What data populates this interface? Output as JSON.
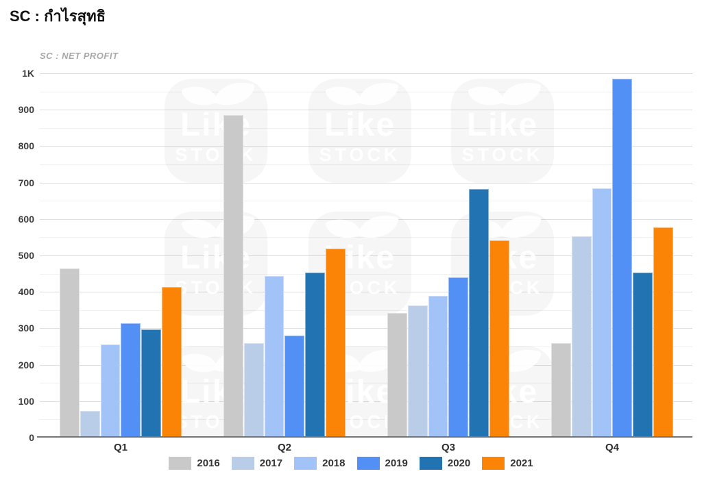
{
  "page": {
    "title": "SC : กำไรสุทธิ"
  },
  "watermark": {
    "line1": "Like",
    "line2": "STOCK"
  },
  "chart_data": {
    "type": "bar",
    "title": "SC : NET PROFIT",
    "categories": [
      "Q1",
      "Q2",
      "Q3",
      "Q4"
    ],
    "series": [
      {
        "name": "2016",
        "color": "#c9c9c9",
        "values": [
          465,
          885,
          342,
          260
        ]
      },
      {
        "name": "2017",
        "color": "#b9cde8",
        "values": [
          73,
          259,
          362,
          552
        ]
      },
      {
        "name": "2018",
        "color": "#a2c3f8",
        "values": [
          256,
          444,
          390,
          684
        ]
      },
      {
        "name": "2019",
        "color": "#5290f5",
        "values": [
          313,
          281,
          439,
          985
        ]
      },
      {
        "name": "2020",
        "color": "#2173b2",
        "values": [
          297,
          453,
          682,
          453
        ]
      },
      {
        "name": "2021",
        "color": "#fb8306",
        "values": [
          414,
          518,
          542,
          578
        ]
      }
    ],
    "ylim": [
      0,
      1000
    ],
    "ytick_interval": 100,
    "minor_tick_interval": 50,
    "ytick_labels": [
      "0",
      "100",
      "200",
      "300",
      "400",
      "500",
      "600",
      "700",
      "800",
      "900",
      "1K"
    ],
    "xlabel": "",
    "ylabel": "",
    "grid": "horizontal major+minor",
    "legend_position": "bottom-center"
  }
}
